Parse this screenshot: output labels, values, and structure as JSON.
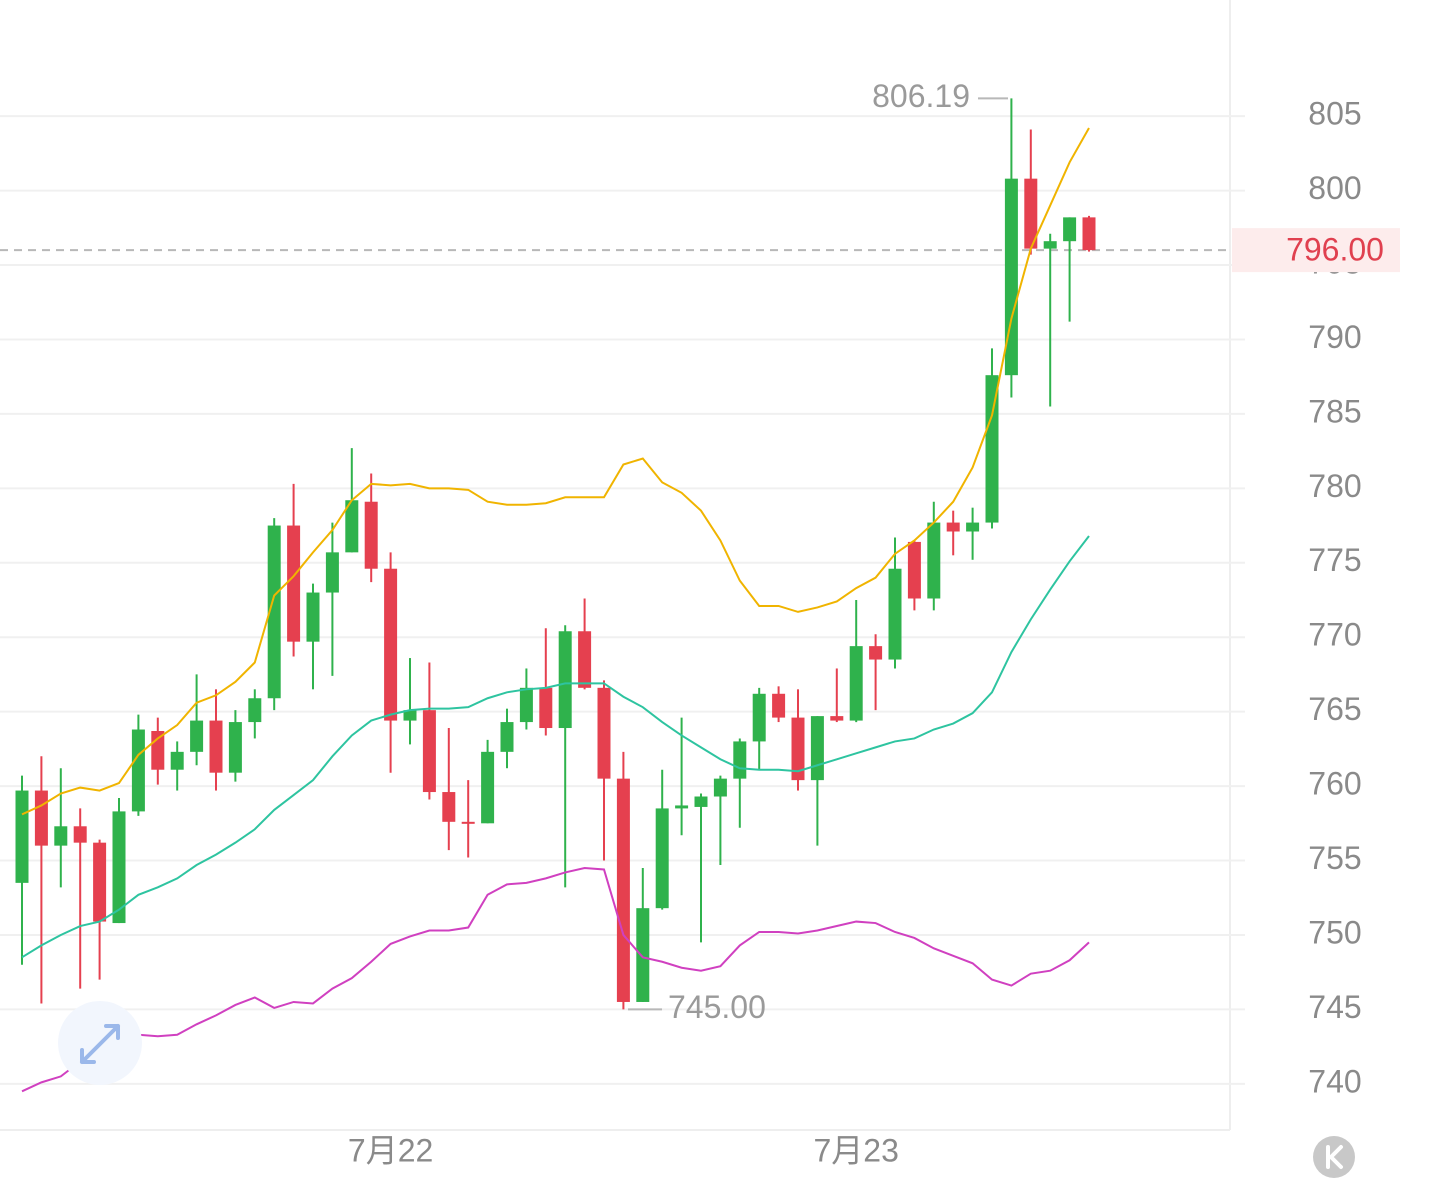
{
  "chart_data": {
    "type": "candlestick",
    "categories": [
      null,
      null,
      null,
      null,
      null,
      null,
      null,
      null,
      null,
      null,
      null,
      null,
      null,
      null,
      null,
      null,
      null,
      null,
      null,
      "7月22",
      null,
      null,
      null,
      null,
      null,
      null,
      null,
      null,
      null,
      null,
      null,
      null,
      null,
      null,
      null,
      null,
      null,
      null,
      null,
      null,
      null,
      null,
      null,
      "7月23",
      null,
      null,
      null,
      null,
      null,
      null,
      null,
      null,
      null,
      null,
      null,
      null
    ],
    "open": [
      753.5,
      759.7,
      756.0,
      757.3,
      756.2,
      750.8,
      758.3,
      763.7,
      761.1,
      762.3,
      764.4,
      760.9,
      764.3,
      765.9,
      777.5,
      769.7,
      773.0,
      775.7,
      779.1,
      774.6,
      764.4,
      765.1,
      759.6,
      757.6,
      757.5,
      762.3,
      764.3,
      766.6,
      763.9,
      770.4,
      766.6,
      760.5,
      745.5,
      751.8,
      758.5,
      758.6,
      759.3,
      760.5,
      763.0,
      766.2,
      764.6,
      760.4,
      764.7,
      764.4,
      769.4,
      768.5,
      776.4,
      772.6,
      777.7,
      777.1,
      777.7,
      787.6,
      800.8,
      796.1,
      796.6,
      798.2
    ],
    "high": [
      760.7,
      762.0,
      761.2,
      758.5,
      756.4,
      759.2,
      764.8,
      764.6,
      763.0,
      767.5,
      766.5,
      765.1,
      766.5,
      778.0,
      780.3,
      773.6,
      777.7,
      782.7,
      781.0,
      775.7,
      768.6,
      768.3,
      763.9,
      760.4,
      763.1,
      765.2,
      767.9,
      770.6,
      770.8,
      772.6,
      767.1,
      762.3,
      754.5,
      761.1,
      764.6,
      759.5,
      760.7,
      763.2,
      766.6,
      766.7,
      766.5,
      764.7,
      767.9,
      772.5,
      770.2,
      776.7,
      776.5,
      779.1,
      778.5,
      778.7,
      789.4,
      806.19,
      804.1,
      797.1,
      798.2,
      798.3
    ],
    "low": [
      748.0,
      745.4,
      753.2,
      746.4,
      747.0,
      750.8,
      758.0,
      760.1,
      759.7,
      761.4,
      759.7,
      760.3,
      763.2,
      765.1,
      768.7,
      766.5,
      767.4,
      775.7,
      773.7,
      760.9,
      762.8,
      759.1,
      755.7,
      755.2,
      757.5,
      761.2,
      763.8,
      763.4,
      753.2,
      766.5,
      755.0,
      745.0,
      745.5,
      751.7,
      756.7,
      749.5,
      754.7,
      757.2,
      761.1,
      764.3,
      759.7,
      756.0,
      764.3,
      764.3,
      765.1,
      767.9,
      771.8,
      771.8,
      775.5,
      775.2,
      777.3,
      786.1,
      795.7,
      785.5,
      791.2,
      795.9
    ],
    "close": [
      759.7,
      756.0,
      757.3,
      756.2,
      750.9,
      758.3,
      763.8,
      761.1,
      762.3,
      764.4,
      760.9,
      764.3,
      765.9,
      777.5,
      769.7,
      773.0,
      775.7,
      779.2,
      774.6,
      764.4,
      765.1,
      759.6,
      757.6,
      757.5,
      762.3,
      764.3,
      766.6,
      763.9,
      770.4,
      766.6,
      760.5,
      745.5,
      751.8,
      758.5,
      758.7,
      759.3,
      760.5,
      763.0,
      766.2,
      764.6,
      760.4,
      764.7,
      764.4,
      769.4,
      768.5,
      774.6,
      772.6,
      777.7,
      777.1,
      777.7,
      787.6,
      800.8,
      796.1,
      796.6,
      798.2,
      796.0
    ],
    "up_color": "#2fb24c",
    "down_color": "#e5404f",
    "lines": [
      {
        "color": "#f0b400",
        "values": [
          758.1,
          758.7,
          759.5,
          759.9,
          759.7,
          760.2,
          762.1,
          763.2,
          764.1,
          765.6,
          766.1,
          767.0,
          768.3,
          772.8,
          774.1,
          775.7,
          777.2,
          779.2,
          780.3,
          780.2,
          780.3,
          780.0,
          780.0,
          779.9,
          779.1,
          778.9,
          778.9,
          779.0,
          779.4,
          779.4,
          779.4,
          781.6,
          782.0,
          780.4,
          779.7,
          778.5,
          776.5,
          773.8,
          772.1,
          772.1,
          771.7,
          772.0,
          772.4,
          773.3,
          774.0,
          775.6,
          776.5,
          777.7,
          779.1,
          781.4,
          784.9,
          791.4,
          796.1,
          799.0,
          801.9,
          804.2
        ]
      },
      {
        "color": "#2ec4a0",
        "values": [
          748.5,
          749.3,
          750.0,
          750.6,
          750.9,
          751.7,
          752.7,
          753.2,
          753.8,
          754.7,
          755.4,
          756.2,
          757.1,
          758.4,
          759.4,
          760.4,
          762.0,
          763.4,
          764.4,
          764.8,
          765.1,
          765.2,
          765.2,
          765.3,
          765.9,
          766.3,
          766.5,
          766.6,
          766.9,
          766.9,
          766.9,
          766.0,
          765.3,
          764.3,
          763.4,
          762.6,
          761.8,
          761.2,
          761.1,
          761.1,
          761.0,
          761.4,
          761.8,
          762.2,
          762.6,
          763.0,
          763.2,
          763.8,
          764.2,
          764.9,
          766.3,
          769.0,
          771.2,
          773.2,
          775.1,
          776.8
        ]
      },
      {
        "color": "#d040c0",
        "values": [
          739.5,
          740.1,
          740.5,
          741.5,
          742.6,
          743.3,
          743.3,
          743.2,
          743.3,
          744.0,
          744.6,
          745.3,
          745.8,
          745.1,
          745.5,
          745.4,
          746.4,
          747.1,
          748.2,
          749.4,
          749.9,
          750.3,
          750.3,
          750.5,
          752.7,
          753.4,
          753.5,
          753.8,
          754.2,
          754.5,
          754.4,
          750.0,
          748.5,
          748.2,
          747.8,
          747.6,
          747.9,
          749.3,
          750.2,
          750.2,
          750.1,
          750.3,
          750.6,
          750.9,
          750.8,
          750.2,
          749.8,
          749.1,
          748.6,
          748.1,
          747.0,
          746.6,
          747.4,
          747.6,
          748.3,
          749.5
        ]
      }
    ],
    "ylim": [
      736.9,
      812.8
    ],
    "yticks": [
      740,
      745,
      750,
      755,
      760,
      765,
      770,
      775,
      780,
      785,
      790,
      795,
      800,
      805
    ],
    "grid": true,
    "annotations": [
      {
        "value": 806.19,
        "label": "806.19"
      },
      {
        "value": 745.0,
        "label": "745.00"
      }
    ],
    "last_price": {
      "value": 796.0,
      "label": "796.00"
    }
  }
}
